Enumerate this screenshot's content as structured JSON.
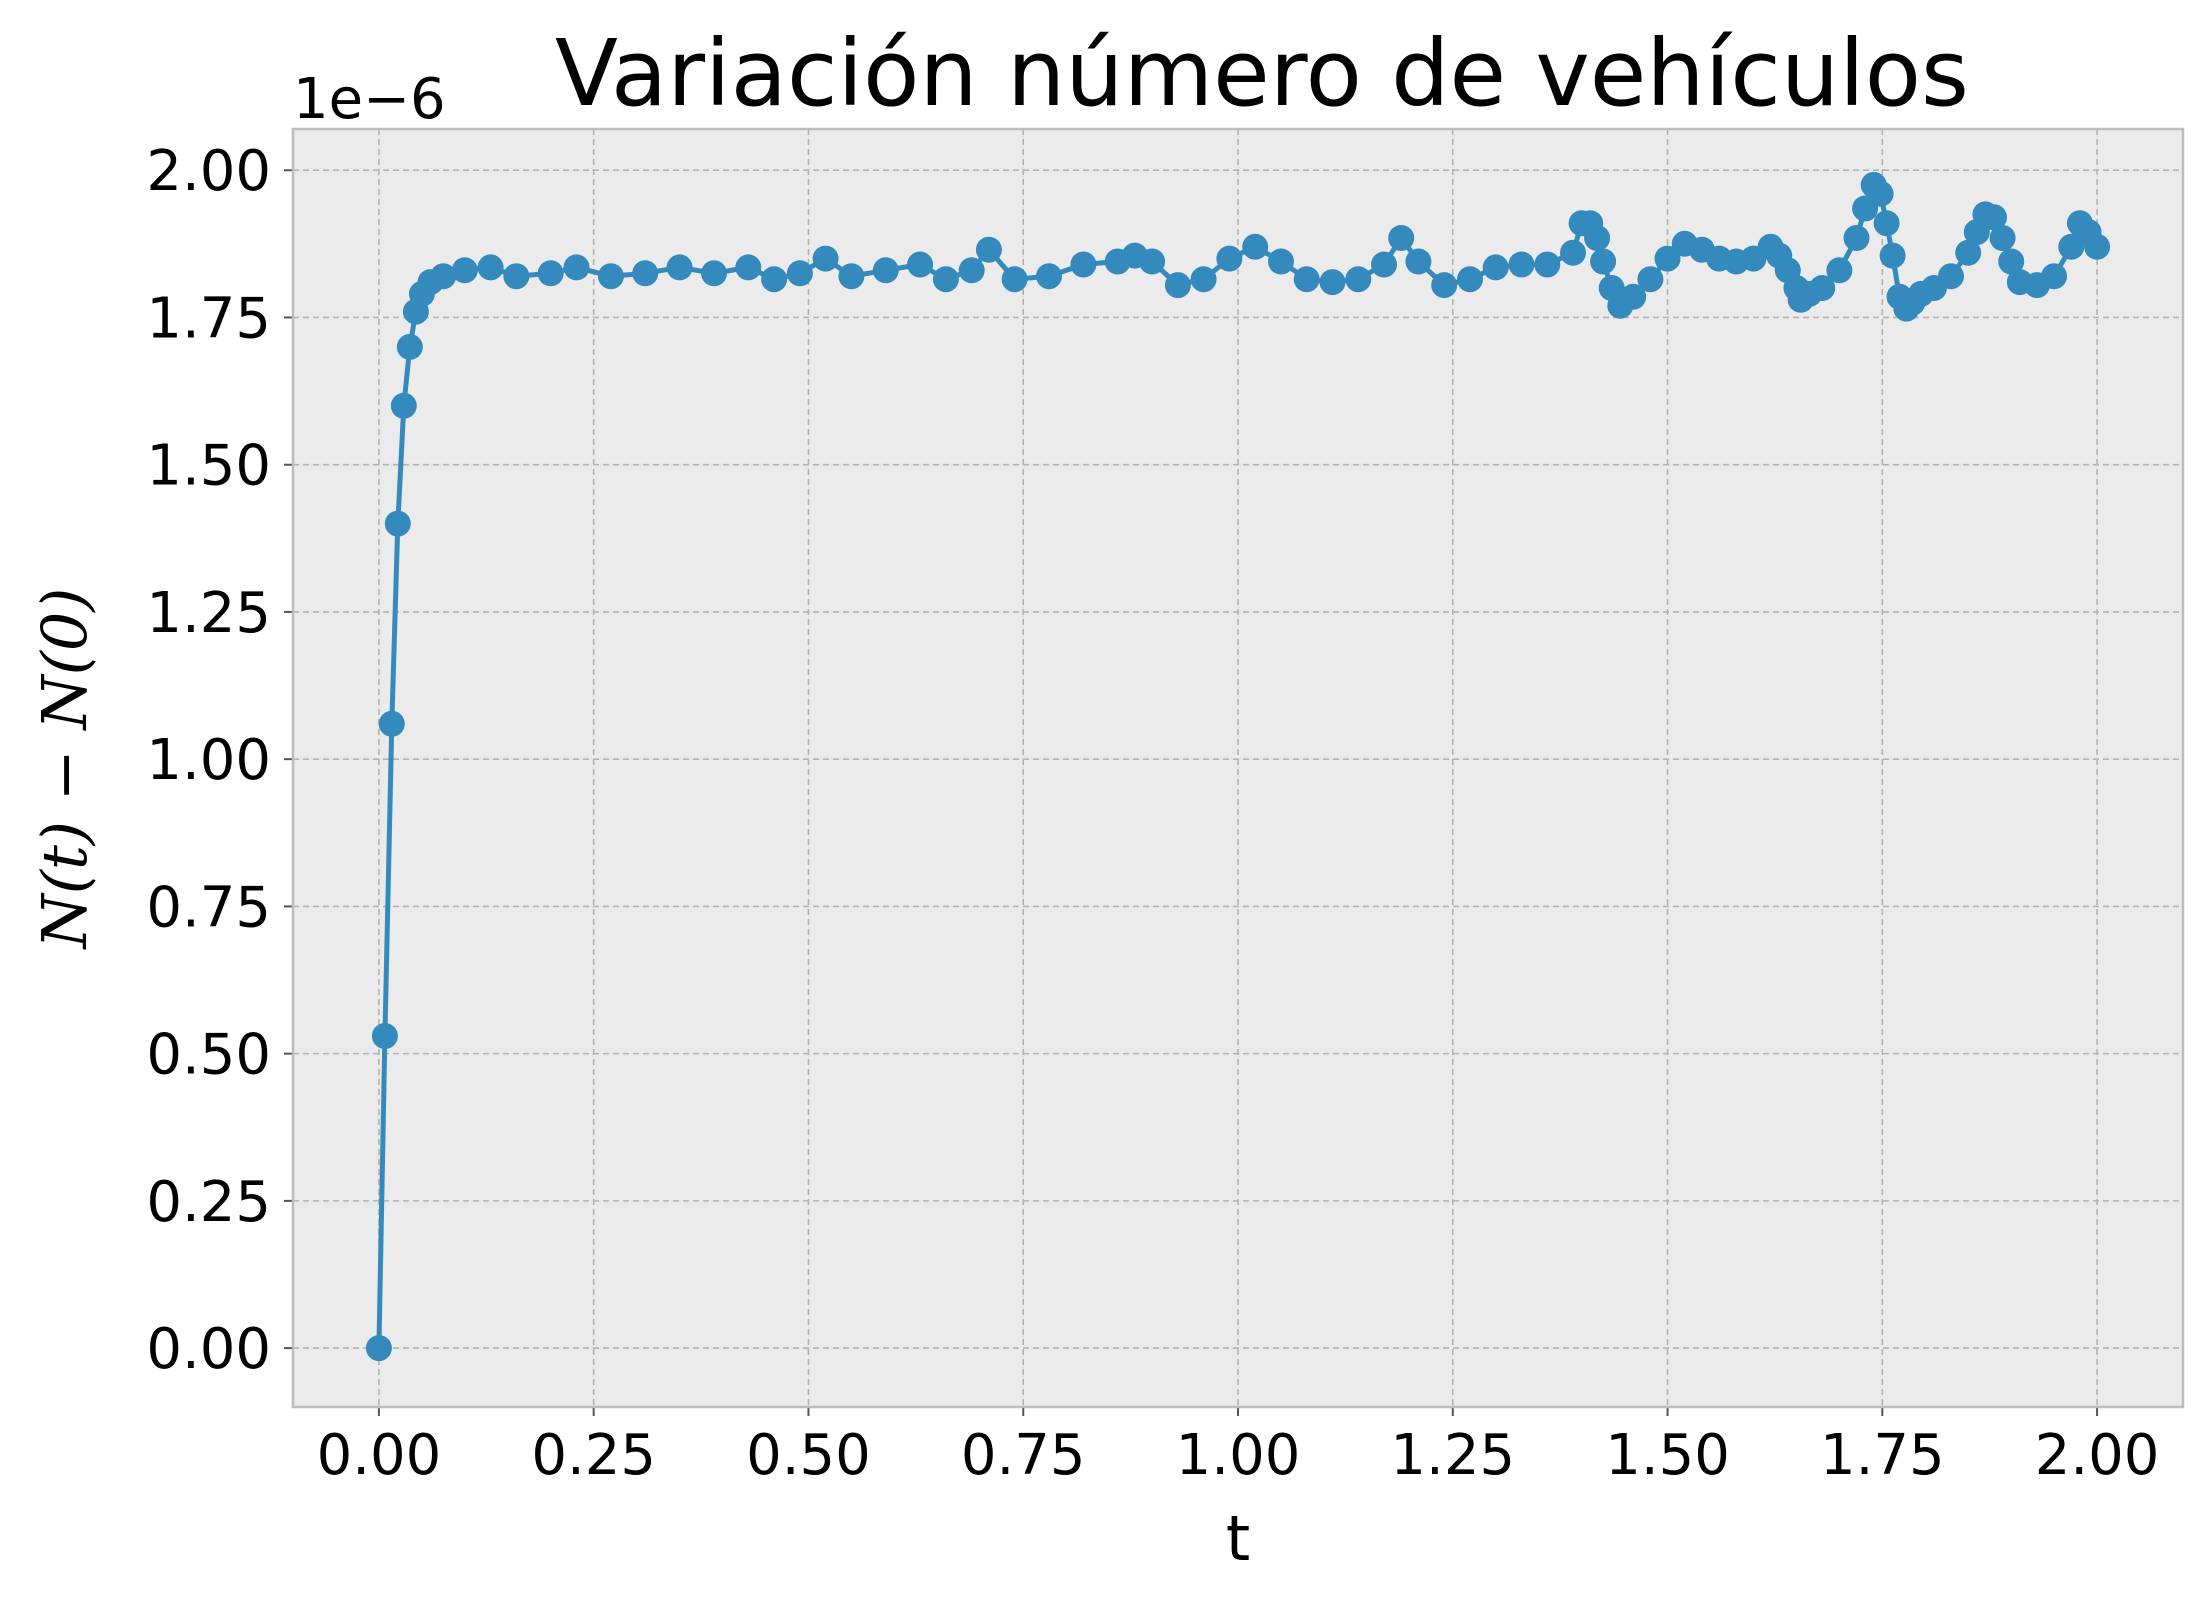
{
  "chart_data": {
    "type": "line",
    "title": "Variación número de vehículos",
    "xlabel": "t",
    "ylabel": "N(t) − N(0)",
    "y_offset_label": "1e−6",
    "xlim": [
      -0.1,
      2.1
    ],
    "ylim": [
      -0.1,
      2.07
    ],
    "xticks": [
      0.0,
      0.25,
      0.5,
      0.75,
      1.0,
      1.25,
      1.5,
      1.75,
      2.0
    ],
    "xtick_labels": [
      "0.00",
      "0.25",
      "0.50",
      "0.75",
      "1.00",
      "1.25",
      "1.50",
      "1.75",
      "2.00"
    ],
    "yticks": [
      0.0,
      0.25,
      0.5,
      0.75,
      1.0,
      1.25,
      1.5,
      1.75,
      2.0
    ],
    "ytick_labels": [
      "0.00",
      "0.25",
      "0.50",
      "0.75",
      "1.00",
      "1.25",
      "1.50",
      "1.75",
      "2.00"
    ],
    "grid": true,
    "background": "#ebebeb",
    "line_color": "#348abd",
    "series": [
      {
        "x": [
          0.0,
          0.007,
          0.015,
          0.022,
          0.029,
          0.036,
          0.043,
          0.05,
          0.06,
          0.075,
          0.1,
          0.13,
          0.16,
          0.2,
          0.23,
          0.27,
          0.31,
          0.35,
          0.39,
          0.43,
          0.46,
          0.49,
          0.52,
          0.55,
          0.59,
          0.63,
          0.66,
          0.69,
          0.71,
          0.74,
          0.78,
          0.82,
          0.86,
          0.88,
          0.9,
          0.93,
          0.96,
          0.99,
          1.02,
          1.05,
          1.08,
          1.11,
          1.14,
          1.17,
          1.19,
          1.21,
          1.24,
          1.27,
          1.3,
          1.33,
          1.36,
          1.39,
          1.4,
          1.41,
          1.418,
          1.425,
          1.435,
          1.445,
          1.46,
          1.48,
          1.5,
          1.52,
          1.54,
          1.56,
          1.58,
          1.6,
          1.62,
          1.63,
          1.64,
          1.65,
          1.655,
          1.665,
          1.68,
          1.7,
          1.72,
          1.73,
          1.74,
          1.748,
          1.755,
          1.762,
          1.77,
          1.778,
          1.785,
          1.795,
          1.81,
          1.83,
          1.85,
          1.86,
          1.87,
          1.88,
          1.89,
          1.9,
          1.91,
          1.93,
          1.95,
          1.97,
          1.98,
          1.99,
          2.0
        ],
        "y": [
          0.0,
          0.53,
          1.06,
          1.4,
          1.6,
          1.7,
          1.76,
          1.79,
          1.81,
          1.82,
          1.83,
          1.835,
          1.82,
          1.825,
          1.835,
          1.82,
          1.825,
          1.835,
          1.825,
          1.835,
          1.815,
          1.825,
          1.85,
          1.82,
          1.83,
          1.84,
          1.815,
          1.83,
          1.865,
          1.815,
          1.82,
          1.84,
          1.845,
          1.855,
          1.845,
          1.805,
          1.815,
          1.85,
          1.87,
          1.845,
          1.815,
          1.81,
          1.815,
          1.84,
          1.885,
          1.845,
          1.805,
          1.815,
          1.835,
          1.84,
          1.84,
          1.86,
          1.91,
          1.91,
          1.885,
          1.845,
          1.8,
          1.77,
          1.785,
          1.815,
          1.85,
          1.875,
          1.865,
          1.85,
          1.845,
          1.85,
          1.87,
          1.855,
          1.83,
          1.8,
          1.78,
          1.79,
          1.8,
          1.83,
          1.885,
          1.935,
          1.975,
          1.96,
          1.91,
          1.855,
          1.785,
          1.765,
          1.775,
          1.79,
          1.8,
          1.82,
          1.86,
          1.895,
          1.925,
          1.92,
          1.885,
          1.845,
          1.81,
          1.805,
          1.82,
          1.87,
          1.91,
          1.895,
          1.87
        ]
      }
    ]
  }
}
